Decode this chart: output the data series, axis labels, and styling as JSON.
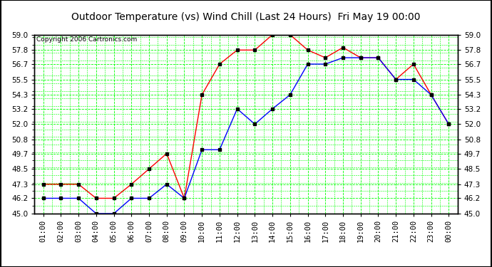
{
  "title": "Outdoor Temperature (vs) Wind Chill (Last 24 Hours)  Fri May 19 00:00",
  "copyright": "Copyright 2006 Cartronics.com",
  "x_labels": [
    "01:00",
    "02:00",
    "03:00",
    "04:00",
    "05:00",
    "06:00",
    "07:00",
    "08:00",
    "09:00",
    "10:00",
    "11:00",
    "12:00",
    "13:00",
    "14:00",
    "15:00",
    "16:00",
    "17:00",
    "18:00",
    "19:00",
    "20:00",
    "21:00",
    "22:00",
    "23:00",
    "00:00"
  ],
  "temp_red": [
    47.3,
    47.3,
    47.3,
    46.2,
    46.2,
    47.3,
    48.5,
    49.7,
    46.2,
    54.3,
    56.7,
    57.8,
    57.8,
    59.0,
    59.0,
    57.8,
    57.2,
    58.0,
    57.2,
    57.2,
    55.5,
    56.7,
    54.3,
    52.0
  ],
  "temp_blue": [
    46.2,
    46.2,
    46.2,
    45.0,
    45.0,
    46.2,
    46.2,
    47.3,
    46.2,
    50.0,
    50.0,
    53.2,
    52.0,
    53.2,
    54.3,
    56.7,
    56.7,
    57.2,
    57.2,
    57.2,
    55.5,
    55.5,
    54.3,
    52.0
  ],
  "ylim": [
    45.0,
    59.0
  ],
  "yticks": [
    45.0,
    46.2,
    47.3,
    48.5,
    49.7,
    50.8,
    52.0,
    53.2,
    54.3,
    55.5,
    56.7,
    57.8,
    59.0
  ],
  "bg_color": "#ffffff",
  "plot_bg_color": "#ffffff",
  "grid_color": "#00ff00",
  "line_red_color": "#ff0000",
  "line_blue_color": "#0000ff",
  "marker_color": "#000000",
  "title_fontsize": 10,
  "copyright_fontsize": 6.5,
  "tick_fontsize": 7.5,
  "border_color": "#000000",
  "outer_border_color": "#000000"
}
